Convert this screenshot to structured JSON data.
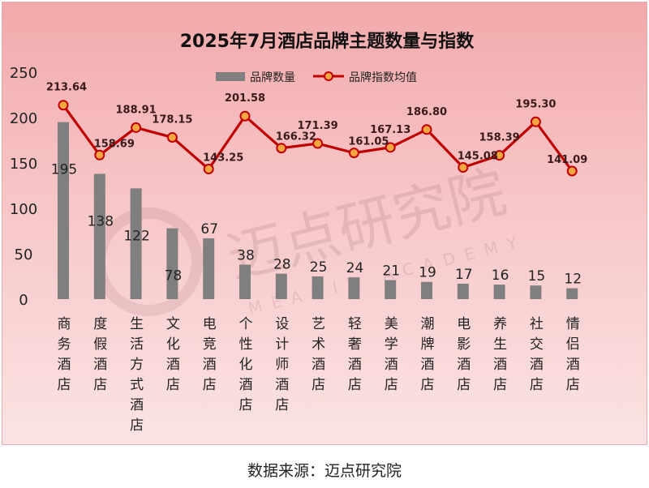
{
  "chart_data": {
    "type": "bar",
    "title": "2025年7月酒店品牌主题数量与指数",
    "categories": [
      "商务酒店",
      "度假酒店",
      "生活方式酒店",
      "文化酒店",
      "电竞酒店",
      "个性化酒店",
      "设计师酒店",
      "艺术酒店",
      "轻奢酒店",
      "美学酒店",
      "潮牌酒店",
      "电影酒店",
      "养生酒店",
      "社交酒店",
      "情侣酒店"
    ],
    "series": [
      {
        "name": "品牌数量",
        "kind": "bar",
        "color": "#7f7f7f",
        "values": [
          195,
          138,
          122,
          78,
          67,
          38,
          28,
          25,
          24,
          21,
          19,
          17,
          16,
          15,
          12
        ]
      },
      {
        "name": "品牌指数均值",
        "kind": "line",
        "color": "#c00000",
        "marker_color": "#f4a640",
        "values": [
          213.64,
          158.69,
          188.91,
          178.15,
          143.25,
          201.58,
          166.32,
          171.39,
          161.05,
          167.13,
          186.8,
          145.08,
          158.39,
          195.3,
          141.09
        ]
      }
    ],
    "value_labels": {
      "bar": [
        "195",
        "138",
        "122",
        "78",
        "67",
        "38",
        "28",
        "25",
        "24",
        "21",
        "19",
        "17",
        "16",
        "15",
        "12"
      ],
      "line": [
        "213.64",
        "158.69",
        "188.91",
        "178.15",
        "143.25",
        "201.58",
        "166.32",
        "171.39",
        "161.05",
        "167.13",
        "186.80",
        "145.08",
        "158.39",
        "195.30",
        "141.09"
      ]
    },
    "ylim": [
      0,
      250
    ],
    "yticks": [
      "0",
      "50",
      "100",
      "150",
      "200",
      "250"
    ],
    "grid": false,
    "legend_position": "top-center"
  },
  "watermark": {
    "cn": "迈点研究院",
    "en": "MEADIN ACADEMY"
  },
  "source": "数据来源：迈点研究院"
}
